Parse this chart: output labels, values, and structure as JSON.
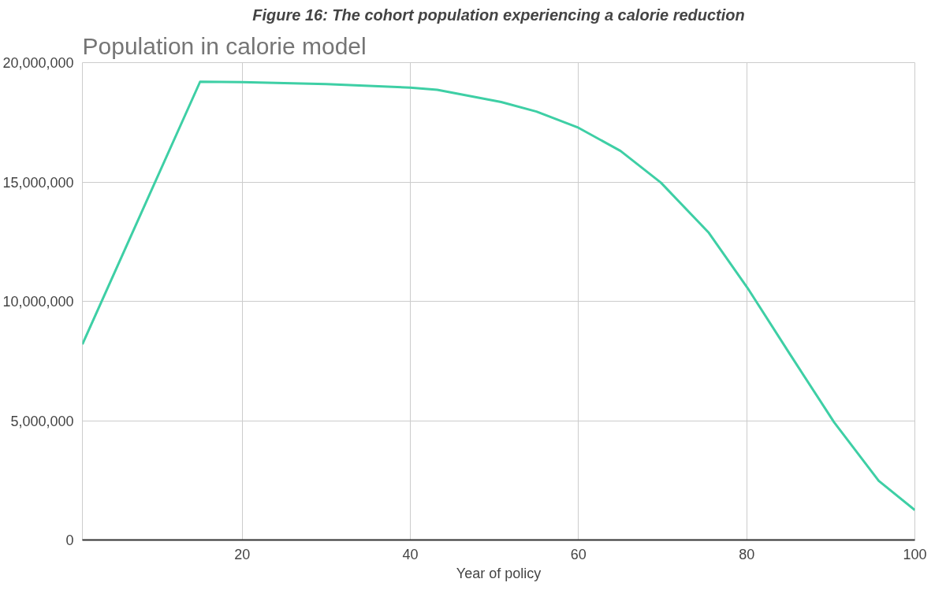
{
  "chart_data": {
    "type": "line",
    "title": "Population in calorie model",
    "xlabel": "Year of policy",
    "annotations": [
      "Figure 16: The cohort population experiencing a calorie reduction"
    ],
    "x": [
      1,
      15,
      20,
      30,
      40,
      43.2,
      50.8,
      55,
      60,
      65,
      69.8,
      75.5,
      80.1,
      85.1,
      90.4,
      95.7,
      100
    ],
    "series": [
      {
        "color": "#3ecfa5",
        "values": [
          8200000,
          19200000,
          19180000,
          19100000,
          18950000,
          18860000,
          18350000,
          17950000,
          17270000,
          16300000,
          14970000,
          12870000,
          10560000,
          7810000,
          4930000,
          2480000,
          1250000
        ]
      }
    ],
    "xlim": [
      1,
      100
    ],
    "xticks": [
      20,
      40,
      60,
      80,
      100
    ],
    "ylim": [
      0,
      20000000
    ],
    "yticks": [
      {
        "value": 0,
        "label": "0"
      },
      {
        "value": 5000000,
        "label": "5,000,000"
      },
      {
        "value": 10000000,
        "label": "10,000,000"
      },
      {
        "value": 15000000,
        "label": "15,000,000"
      },
      {
        "value": 20000000,
        "label": "20,000,000"
      }
    ],
    "grid": true,
    "marker": "none",
    "line_style": "solid"
  }
}
